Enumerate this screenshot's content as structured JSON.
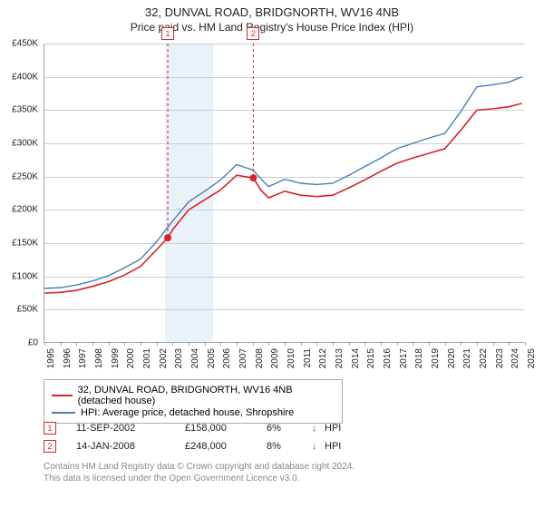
{
  "title": "32, DUNVAL ROAD, BRIDGNORTH, WV16 4NB",
  "subtitle": "Price paid vs. HM Land Registry's House Price Index (HPI)",
  "chart": {
    "type": "line",
    "background_color": "#ffffff",
    "grid_color": "#c8d0d8",
    "axis_color": "#99aabb",
    "title_fontsize": 13,
    "subtitle_fontsize": 12,
    "label_fontsize": 10,
    "y": {
      "min": 0,
      "max": 450000,
      "step": 50000,
      "prefix": "£",
      "suffix": "K",
      "ticks": [
        "£0",
        "£50K",
        "£100K",
        "£150K",
        "£200K",
        "£250K",
        "£300K",
        "£350K",
        "£400K",
        "£450K"
      ]
    },
    "x": {
      "min": 1995,
      "max": 2025,
      "ticks": [
        "1995",
        "1996",
        "1997",
        "1998",
        "1999",
        "2000",
        "2001",
        "2002",
        "2003",
        "2004",
        "2005",
        "2006",
        "2007",
        "2008",
        "2009",
        "2010",
        "2011",
        "2012",
        "2013",
        "2014",
        "2015",
        "2016",
        "2017",
        "2018",
        "2019",
        "2020",
        "2021",
        "2022",
        "2023",
        "2024",
        "2025"
      ]
    },
    "shaded_bands": [
      {
        "from": 2002.5,
        "to": 2003.5,
        "color": "#eaf1f7"
      },
      {
        "from": 2003.5,
        "to": 2004.5,
        "color": "#eaf1f7"
      },
      {
        "from": 2004.5,
        "to": 2005.5,
        "color": "#eaf1f7"
      }
    ],
    "series": [
      {
        "name": "32, DUNVAL ROAD, BRIDGNORTH, WV16 4NB (detached house)",
        "color": "#d8232a",
        "line_width": 1.6,
        "points": [
          [
            1995,
            75000
          ],
          [
            1996,
            76000
          ],
          [
            1997,
            79000
          ],
          [
            1998,
            85000
          ],
          [
            1999,
            92000
          ],
          [
            2000,
            102000
          ],
          [
            2001,
            115000
          ],
          [
            2002,
            140000
          ],
          [
            2002.7,
            158000
          ],
          [
            2003,
            170000
          ],
          [
            2004,
            200000
          ],
          [
            2005,
            215000
          ],
          [
            2006,
            230000
          ],
          [
            2007,
            252000
          ],
          [
            2008.04,
            248000
          ],
          [
            2008.5,
            230000
          ],
          [
            2009,
            218000
          ],
          [
            2010,
            228000
          ],
          [
            2011,
            222000
          ],
          [
            2012,
            220000
          ],
          [
            2013,
            222000
          ],
          [
            2014,
            233000
          ],
          [
            2015,
            245000
          ],
          [
            2016,
            258000
          ],
          [
            2017,
            270000
          ],
          [
            2018,
            278000
          ],
          [
            2019,
            285000
          ],
          [
            2020,
            292000
          ],
          [
            2021,
            320000
          ],
          [
            2022,
            350000
          ],
          [
            2023,
            352000
          ],
          [
            2024,
            355000
          ],
          [
            2024.8,
            360000
          ]
        ]
      },
      {
        "name": "HPI: Average price, detached house, Shropshire",
        "color": "#4a7fb5",
        "line_width": 1.4,
        "points": [
          [
            1995,
            82000
          ],
          [
            1996,
            83000
          ],
          [
            1997,
            87000
          ],
          [
            1998,
            93000
          ],
          [
            1999,
            101000
          ],
          [
            2000,
            113000
          ],
          [
            2001,
            126000
          ],
          [
            2002,
            152000
          ],
          [
            2003,
            183000
          ],
          [
            2004,
            212000
          ],
          [
            2005,
            228000
          ],
          [
            2006,
            245000
          ],
          [
            2007,
            268000
          ],
          [
            2008,
            260000
          ],
          [
            2008.7,
            242000
          ],
          [
            2009,
            235000
          ],
          [
            2010,
            246000
          ],
          [
            2011,
            240000
          ],
          [
            2012,
            238000
          ],
          [
            2013,
            240000
          ],
          [
            2014,
            252000
          ],
          [
            2015,
            265000
          ],
          [
            2016,
            278000
          ],
          [
            2017,
            292000
          ],
          [
            2018,
            300000
          ],
          [
            2019,
            308000
          ],
          [
            2020,
            315000
          ],
          [
            2021,
            348000
          ],
          [
            2022,
            385000
          ],
          [
            2023,
            388000
          ],
          [
            2024,
            392000
          ],
          [
            2024.8,
            400000
          ]
        ]
      }
    ],
    "sale_markers": [
      {
        "n": "1",
        "year": 2002.7,
        "price": 158000,
        "box_color": "#d8232a"
      },
      {
        "n": "2",
        "year": 2008.04,
        "price": 248000,
        "box_color": "#d8232a"
      }
    ],
    "marker_dot_color": "#d8232a",
    "marker_dot_radius": 4
  },
  "legend": {
    "border_color": "#aaaaaa",
    "rows": [
      {
        "color": "#d8232a",
        "label": "32, DUNVAL ROAD, BRIDGNORTH, WV16 4NB (detached house)"
      },
      {
        "color": "#4a7fb5",
        "label": "HPI: Average price, detached house, Shropshire"
      }
    ]
  },
  "sales_table": {
    "rows": [
      {
        "n": "1",
        "date": "11-SEP-2002",
        "price": "£158,000",
        "pct": "6%",
        "arrow": "↓",
        "hpi": "HPI"
      },
      {
        "n": "2",
        "date": "14-JAN-2008",
        "price": "£248,000",
        "pct": "8%",
        "arrow": "↓",
        "hpi": "HPI"
      }
    ],
    "marker_border": "#d8232a",
    "arrow_color": "#2b6fb3"
  },
  "footer": {
    "line1": "Contains HM Land Registry data © Crown copyright and database right 2024.",
    "line2": "This data is licensed under the Open Government Licence v3.0.",
    "color": "#888888"
  }
}
